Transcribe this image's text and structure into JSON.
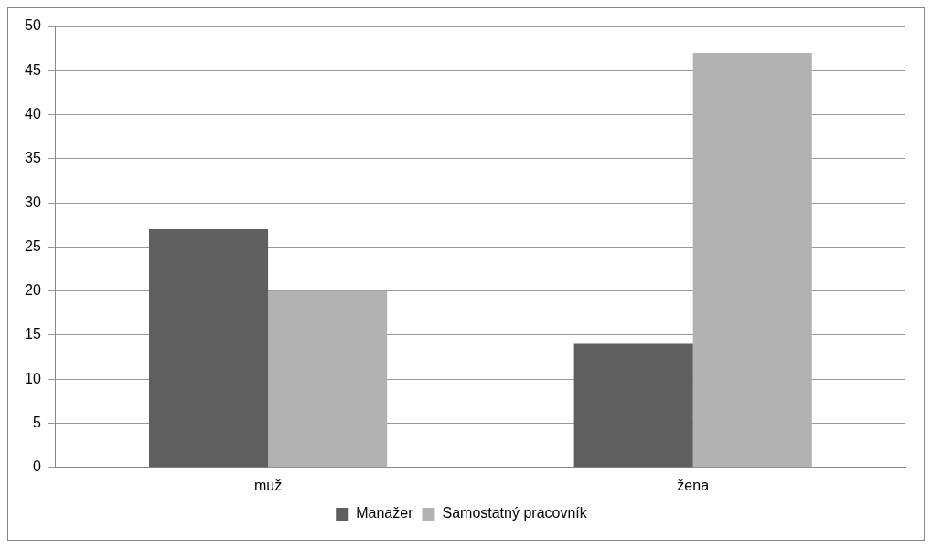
{
  "chart_data": {
    "type": "bar",
    "categories": [
      "muž",
      "žena"
    ],
    "series": [
      {
        "name": "Manažer",
        "color": "#5f5f5f",
        "values": [
          27,
          14
        ]
      },
      {
        "name": "Samostatný pracovník",
        "color": "#b2b2b2",
        "values": [
          20,
          47
        ]
      }
    ],
    "ylim": [
      0,
      50
    ],
    "yticks": [
      0,
      5,
      10,
      15,
      20,
      25,
      30,
      35,
      40,
      45,
      50
    ],
    "grid": "y",
    "legend": "bottom"
  }
}
